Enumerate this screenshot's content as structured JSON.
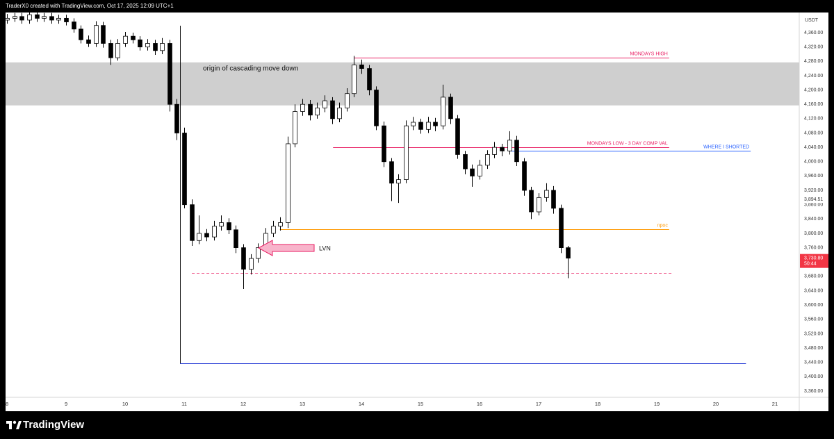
{
  "header": {
    "text": "TraderX0 created with TradingView.com, Oct 17, 2025 12:09 UTC+1"
  },
  "chart_data": {
    "type": "candlestick",
    "currency": "USDT",
    "x": [
      8,
      8.125,
      8.25,
      8.375,
      8.5,
      8.625,
      8.75,
      8.875,
      9,
      9.125,
      9.25,
      9.375,
      9.5,
      9.625,
      9.75,
      9.875,
      10,
      10.125,
      10.25,
      10.375,
      10.5,
      10.625,
      10.75,
      10.875,
      11,
      11.125,
      11.25,
      11.375,
      11.5,
      11.625,
      11.75,
      11.875,
      12,
      12.125,
      12.25,
      12.375,
      12.5,
      12.625,
      12.75,
      12.875,
      13,
      13.125,
      13.25,
      13.375,
      13.5,
      13.625,
      13.75,
      13.875,
      14,
      14.125,
      14.25,
      14.375,
      14.5,
      14.625,
      14.75,
      14.875,
      15,
      15.125,
      15.25,
      15.375,
      15.5,
      15.625,
      15.75,
      15.875,
      16,
      16.125,
      16.25,
      16.375,
      16.5,
      16.625,
      16.75,
      16.875,
      17,
      17.125,
      17.25,
      17.375,
      17.5
    ],
    "open": [
      4395,
      4400,
      4405,
      4395,
      4410,
      4400,
      4405,
      4395,
      4400,
      4390,
      4370,
      4340,
      4330,
      4380,
      4330,
      4290,
      4330,
      4350,
      4340,
      4320,
      4330,
      4310,
      4330,
      4160,
      4080,
      3880,
      3780,
      3800,
      3790,
      3820,
      3830,
      3810,
      3760,
      3700,
      3730,
      3760,
      3800,
      3820,
      3830,
      4050,
      4140,
      4160,
      4130,
      4150,
      4170,
      4120,
      4150,
      4190,
      4270,
      4260,
      4200,
      4100,
      4000,
      3940,
      3950,
      4100,
      4110,
      4090,
      4110,
      4100,
      4180,
      4120,
      4020,
      3980,
      3960,
      3990,
      4020,
      4040,
      4030,
      4060,
      4000,
      3920,
      3860,
      3900,
      3920,
      3870,
      3760
    ],
    "high": [
      4412,
      4415,
      4415,
      4420,
      4420,
      4415,
      4415,
      4410,
      4410,
      4400,
      4380,
      4352,
      4392,
      4390,
      4340,
      4342,
      4362,
      4360,
      4350,
      4342,
      4340,
      4345,
      4340,
      4175,
      4095,
      3895,
      3850,
      3812,
      3835,
      3850,
      3842,
      3822,
      3770,
      3742,
      3772,
      3815,
      3835,
      3845,
      4070,
      4160,
      4175,
      4172,
      4165,
      4185,
      4180,
      4165,
      4205,
      4295,
      4285,
      4270,
      4210,
      4112,
      4010,
      3965,
      4115,
      4125,
      4120,
      4125,
      4122,
      4215,
      4190,
      4130,
      4030,
      3992,
      4005,
      4032,
      4055,
      4050,
      4085,
      4072,
      4010,
      3930,
      3912,
      3940,
      3932,
      3880,
      3765
    ],
    "low": [
      4385,
      4390,
      4385,
      4385,
      4390,
      4390,
      4385,
      4385,
      4380,
      4360,
      4330,
      4320,
      4320,
      4318,
      4270,
      4282,
      4320,
      4330,
      4310,
      4310,
      4298,
      4300,
      4140,
      4060,
      3870,
      3765,
      3770,
      3778,
      3780,
      3808,
      3798,
      3745,
      3645,
      3685,
      3718,
      3750,
      3790,
      3808,
      3815,
      4040,
      4128,
      4115,
      4120,
      4138,
      4105,
      4110,
      4140,
      4180,
      4245,
      4185,
      4088,
      3985,
      3890,
      3885,
      3940,
      4088,
      4078,
      4080,
      4085,
      4090,
      4105,
      4008,
      3965,
      3930,
      3950,
      3980,
      4010,
      4015,
      4020,
      3988,
      3905,
      3840,
      3850,
      3888,
      3855,
      3745,
      3675
    ],
    "close": [
      4400,
      4405,
      4395,
      4410,
      4400,
      4405,
      4395,
      4400,
      4390,
      4370,
      4340,
      4330,
      4380,
      4330,
      4290,
      4330,
      4350,
      4340,
      4320,
      4330,
      4310,
      4330,
      4160,
      4080,
      3880,
      3780,
      3800,
      3790,
      3820,
      3830,
      3810,
      3760,
      3700,
      3730,
      3760,
      3800,
      3820,
      3830,
      4050,
      4140,
      4160,
      4130,
      4150,
      4170,
      4120,
      4150,
      4190,
      4270,
      4260,
      4200,
      4100,
      4000,
      3940,
      3950,
      4100,
      4110,
      4090,
      4110,
      4100,
      4180,
      4120,
      4020,
      3980,
      3960,
      3990,
      4020,
      4040,
      4030,
      4060,
      4000,
      3920,
      3860,
      3900,
      3920,
      3870,
      3760,
      3730.8
    ],
    "up_color": "#ffffff",
    "down_color": "#000000",
    "xlim": [
      7.976,
      21.412
    ],
    "ylim": [
      3342.56,
      4416.2
    ],
    "xticks": [
      8,
      9,
      10,
      11,
      12,
      13,
      14,
      15,
      16,
      17,
      18,
      19,
      20,
      21
    ],
    "yticks": [
      {
        "value": 4360,
        "label": "4,360.00"
      },
      {
        "value": 4320,
        "label": "4,320.00"
      },
      {
        "value": 4280,
        "label": "4,280.00"
      },
      {
        "value": 4240,
        "label": "4,240.00"
      },
      {
        "value": 4200,
        "label": "4,200.00"
      },
      {
        "value": 4160,
        "label": "4,160.00"
      },
      {
        "value": 4120,
        "label": "4,120.00"
      },
      {
        "value": 4080,
        "label": "4,080.00"
      },
      {
        "value": 4040,
        "label": "4,040.00"
      },
      {
        "value": 4000,
        "label": "4,000.00"
      },
      {
        "value": 3960,
        "label": "3,960.00"
      },
      {
        "value": 3920,
        "label": "3,920.00"
      },
      {
        "value": 3880,
        "label": "3,880.00"
      },
      {
        "value": 3840,
        "label": "3,840.00"
      },
      {
        "value": 3800,
        "label": "3,800.00"
      },
      {
        "value": 3760,
        "label": "3,760.00"
      },
      {
        "value": 3720,
        "label": "3,720.00"
      },
      {
        "value": 3680,
        "label": "3,680.00"
      },
      {
        "value": 3640,
        "label": "3,640.00"
      },
      {
        "value": 3600,
        "label": "3,600.00"
      },
      {
        "value": 3560,
        "label": "3,560.00"
      },
      {
        "value": 3520,
        "label": "3,520.00"
      },
      {
        "value": 3480,
        "label": "3,480.00"
      },
      {
        "value": 3440,
        "label": "3,440.00"
      },
      {
        "value": 3400,
        "label": "3,400.00"
      },
      {
        "value": 3360,
        "label": "3,360.00"
      }
    ],
    "zone": {
      "from": 4157,
      "to": 4277,
      "label": "origin of cascading move down",
      "color": "#cfcfcf"
    },
    "levels": [
      {
        "label": "MONDAYS HIGH",
        "value": 4290,
        "x": [
          13.88,
          19.21
        ],
        "color": "#e91e63"
      },
      {
        "label": "MONDAYS LOW - 3 DAY COMP VAL",
        "value": 4040,
        "x": [
          13.52,
          19.21
        ],
        "color": "#e91e63"
      },
      {
        "label": "WHERE I SHORTED",
        "value": 4030.5,
        "x": [
          16.53,
          20.59
        ],
        "color": "#2962ff"
      },
      {
        "label": "npoc",
        "value": 3811.5,
        "x": [
          12.62,
          19.21
        ],
        "color": "#ff9800"
      },
      {
        "value": 3689.5,
        "x": [
          11.13,
          19.26
        ],
        "color": "#f06292",
        "dashed": true
      },
      {
        "value": 3437.5,
        "x": [
          10.93,
          20.51
        ],
        "color": "#2a3fd6"
      }
    ],
    "annotation": "LVN",
    "price_marker": {
      "value": 3894.51,
      "label": "3,894.51"
    },
    "last_price": {
      "value": 3730.8,
      "label": "3,730.80",
      "countdown": "50:44",
      "color": "#f23645"
    }
  },
  "footer": {
    "brand": "TradingView"
  }
}
